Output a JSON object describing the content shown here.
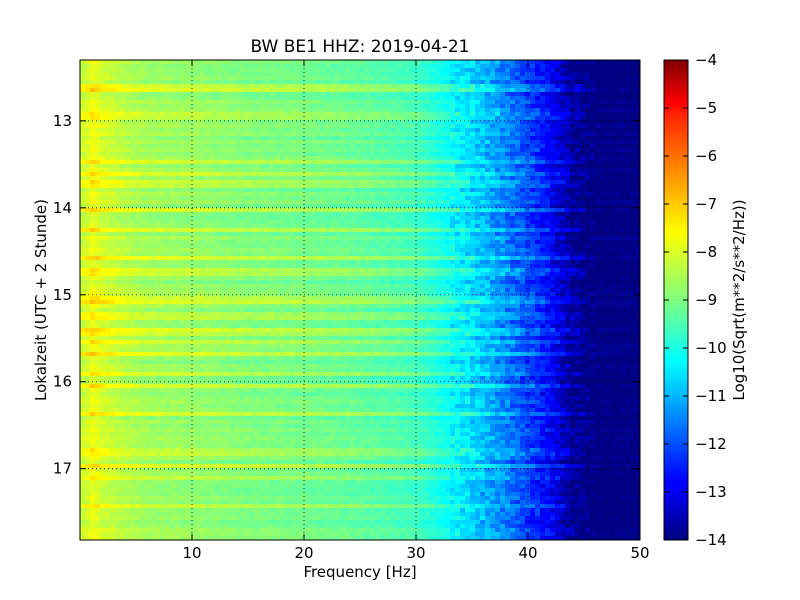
{
  "chart_data": {
    "type": "heatmap",
    "title": "BW BE1 HHZ: 2019-04-21",
    "xlabel": "Frequency [Hz]",
    "ylabel": "Lokalzeit (UTC + 2 Stunde)",
    "colorbar_label": "Log10(Sqrt(m**2/s**2/Hz))",
    "xlim": [
      0,
      50
    ],
    "ylim_hours": [
      12.3,
      17.82
    ],
    "y_axis_inverted": true,
    "x_ticks": [
      10,
      20,
      30,
      40,
      50
    ],
    "x_tick_labels": [
      "10",
      "20",
      "30",
      "40",
      "50"
    ],
    "y_ticks": [
      13,
      14,
      15,
      16,
      17
    ],
    "y_tick_labels": [
      "13",
      "14",
      "15",
      "16",
      "17"
    ],
    "colorbar_range": [
      -14,
      -4
    ],
    "colorbar_ticks": [
      -4,
      -5,
      -6,
      -7,
      -8,
      -9,
      -10,
      -11,
      -12,
      -13,
      -14
    ],
    "colorbar_tick_labels": [
      "−4",
      "−5",
      "−6",
      "−7",
      "−8",
      "−9",
      "−10",
      "−11",
      "−12",
      "−13",
      "−14"
    ],
    "colormap": "jet",
    "grid": "dotted",
    "psd_profile": {
      "frequency_hz": [
        0.5,
        1,
        2,
        4,
        6,
        10,
        15,
        20,
        25,
        30,
        32,
        34,
        36,
        38,
        40,
        42,
        43,
        44,
        45,
        50
      ],
      "log10_amplitude": [
        -8.3,
        -7.9,
        -8.2,
        -8.5,
        -8.7,
        -8.8,
        -9.0,
        -9.1,
        -9.3,
        -9.6,
        -10.0,
        -10.4,
        -10.9,
        -11.5,
        -12.1,
        -12.8,
        -13.3,
        -13.8,
        -14.0,
        -14.0
      ]
    },
    "band_times_hours": [
      12.62,
      12.95,
      13.48,
      13.62,
      13.72,
      14.02,
      14.25,
      14.58,
      14.75,
      15.05,
      15.25,
      15.42,
      15.55,
      15.68,
      15.92,
      16.05,
      16.38,
      16.82,
      16.97,
      17.1,
      17.42
    ],
    "colors": {
      "frame": "#000000",
      "background": "#ffffff"
    }
  }
}
